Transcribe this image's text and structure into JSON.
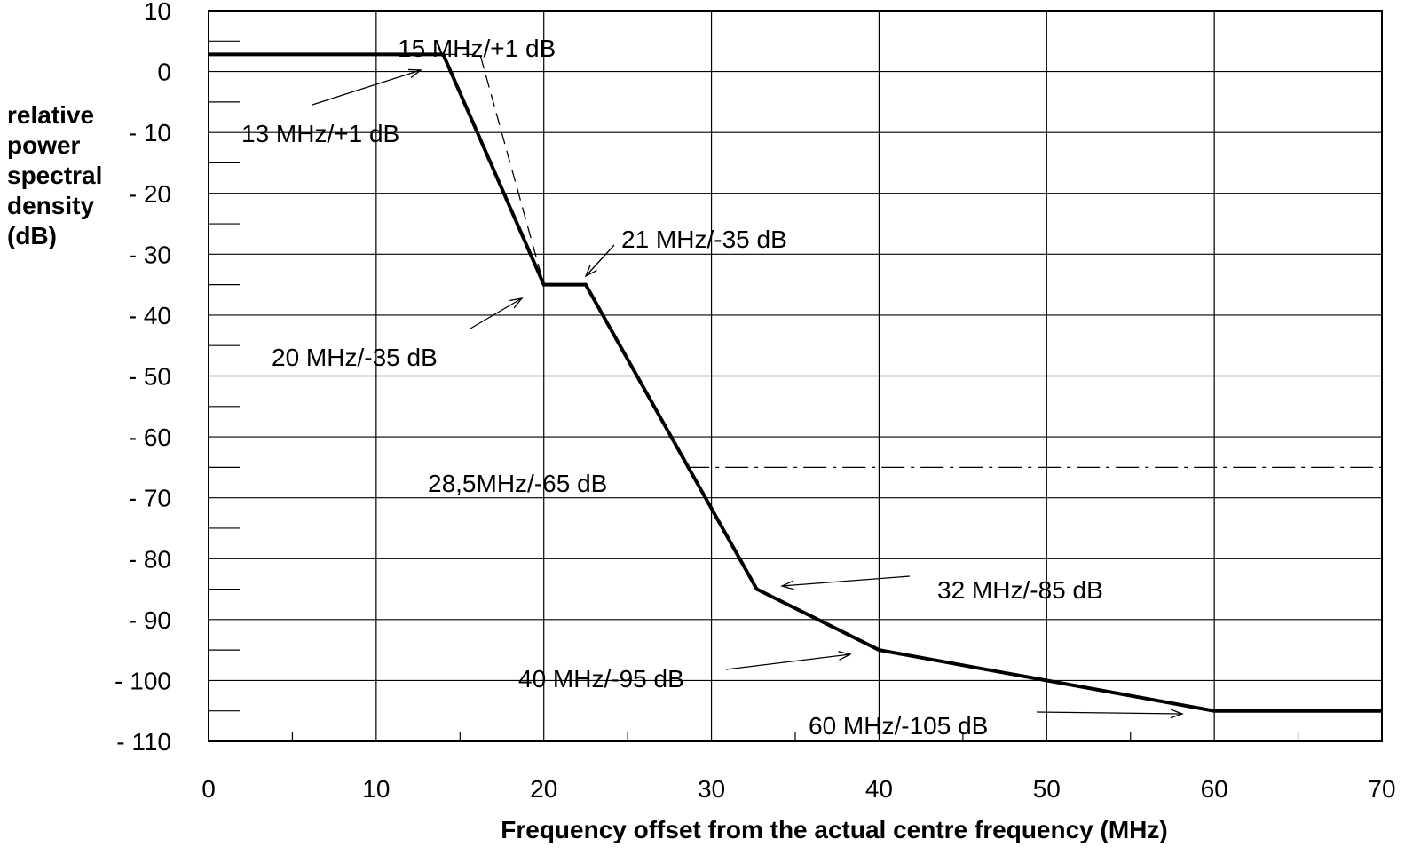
{
  "chart_data": {
    "type": "line",
    "title": "",
    "xlabel": "Frequency offset from the actual centre frequency (MHz)",
    "ylabel_lines": [
      "relative",
      "power",
      "spectral",
      "density",
      "(dB)"
    ],
    "xlim": [
      0,
      70
    ],
    "ylim": [
      -110,
      10
    ],
    "xticks": [
      0,
      10,
      20,
      30,
      40,
      50,
      60,
      70
    ],
    "xtick_labels": [
      "0",
      "10",
      "20",
      "30",
      "40",
      "50",
      "60",
      "70"
    ],
    "yticks": [
      10,
      0,
      -10,
      -20,
      -30,
      -40,
      -50,
      -60,
      -70,
      -80,
      -90,
      -100,
      -110
    ],
    "ytick_labels": [
      "10",
      "0",
      "- 10",
      "- 20",
      "- 30",
      "- 40",
      "- 50",
      "- 60",
      "- 70",
      "- 80",
      "- 90",
      "- 100",
      "- 110"
    ],
    "grid": true,
    "series": [
      {
        "style": "solid-thick",
        "x": [
          0,
          14,
          20,
          22.5,
          32.7,
          40,
          60,
          70
        ],
        "y": [
          2.8,
          2.8,
          -35,
          -35,
          -85,
          -95,
          -105,
          -105
        ]
      },
      {
        "style": "dashed",
        "x": [
          14,
          16.2,
          20
        ],
        "y": [
          2.8,
          2.8,
          -35
        ]
      },
      {
        "style": "dash-dot",
        "x": [
          28.5,
          70
        ],
        "y": [
          -65,
          -65
        ]
      }
    ],
    "annotations": [
      {
        "text": "15 MHz/+1 dB"
      },
      {
        "text": "13 MHz/+1 dB"
      },
      {
        "text": "21 MHz/-35 dB"
      },
      {
        "text": "20 MHz/-35 dB"
      },
      {
        "text": "28,5MHz/-65 dB"
      },
      {
        "text": "32 MHz/-85 dB"
      },
      {
        "text": "40 MHz/-95 dB"
      },
      {
        "text": "60 MHz/-105 dB"
      }
    ]
  }
}
